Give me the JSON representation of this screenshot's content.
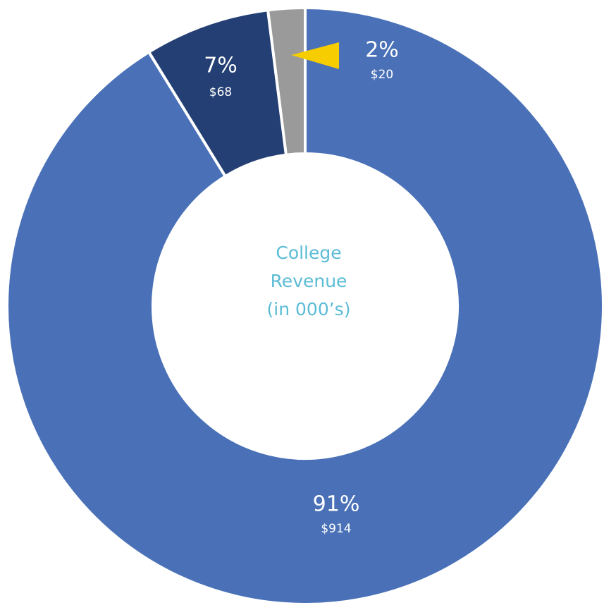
{
  "chart_data": {
    "type": "donut",
    "title_lines": [
      "College",
      "Revenue",
      "(in 000’s)"
    ],
    "values": [
      914,
      68,
      20
    ],
    "value_labels": [
      "$914",
      "$68",
      "$20"
    ],
    "percentages": [
      91,
      7,
      2
    ],
    "percent_labels": [
      "91%",
      "7%",
      "2%"
    ],
    "colors": [
      "#4a71b7",
      "#233f73",
      "#9a9a9a"
    ]
  }
}
